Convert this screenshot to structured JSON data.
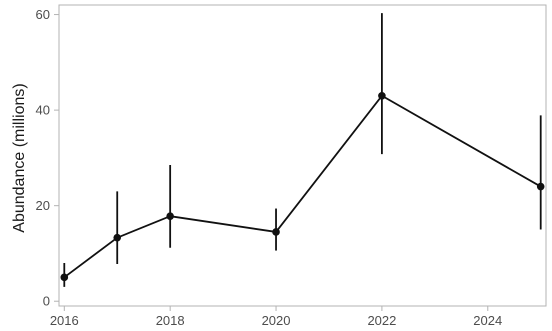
{
  "chart_data": {
    "type": "line",
    "title": "",
    "xlabel": "",
    "ylabel": "Abundance (millions)",
    "xlim": [
      2015.9,
      2025.1
    ],
    "ylim": [
      -1,
      62
    ],
    "x_ticks": [
      2016,
      2018,
      2020,
      2022,
      2024
    ],
    "y_ticks": [
      0,
      20,
      40,
      60
    ],
    "grid": false,
    "legend": "none",
    "series": [
      {
        "x": [
          2016,
          2017,
          2018,
          2020,
          2022,
          2025
        ],
        "y": [
          5,
          13.3,
          17.8,
          14.5,
          43,
          24
        ],
        "lower": [
          3,
          7.8,
          11.2,
          10.6,
          30.8,
          15
        ],
        "upper": [
          8,
          23,
          28.5,
          19.4,
          60.3,
          38.9
        ]
      }
    ],
    "colors": {
      "line": "#111111",
      "panel_border": "#b3b3b3",
      "tick_text": "#4d4d4d"
    }
  }
}
